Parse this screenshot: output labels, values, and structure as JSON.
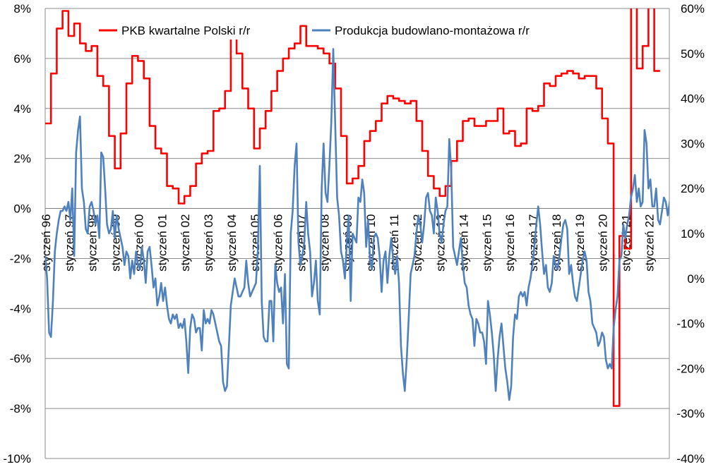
{
  "chart_data": {
    "type": "line",
    "title": "",
    "xlabel": "",
    "ylabel": "",
    "y_left": {
      "min": -10,
      "max": 8,
      "step": 2,
      "format": "percent"
    },
    "y_right": {
      "min": -40,
      "max": 60,
      "step": 10,
      "format": "percent"
    },
    "grid": "horizontal",
    "legend_position": "top-center",
    "x_ticks": [
      "styczeń 96",
      "styczeń 97",
      "styczeń 98",
      "styczeń 99",
      "styczeń 00",
      "styczeń 01",
      "styczeń 02",
      "styczeń 03",
      "styczeń 04",
      "styczeń 05",
      "styczeń 06",
      "styczeń 07",
      "styczeń 08",
      "styczeń 09",
      "styczeń 10",
      "styczeń 11",
      "styczeń 12",
      "styczeń 13",
      "styczeń 14",
      "styczeń 15",
      "styczeń 16",
      "styczeń 17",
      "styczeń 18",
      "styczeń 19",
      "styczeń 20",
      "styczeń 21",
      "styczeń 22"
    ],
    "series": [
      {
        "name": "PKB kwartalne Polski r/r",
        "axis": "left",
        "color": "#ff0000",
        "frequency": "quarterly",
        "x": [
          1996.0,
          1996.25,
          1996.5,
          1996.75,
          1997.0,
          1997.25,
          1997.5,
          1997.75,
          1998.0,
          1998.25,
          1998.5,
          1998.75,
          1999.0,
          1999.25,
          1999.5,
          1999.75,
          2000.0,
          2000.25,
          2000.5,
          2000.75,
          2001.0,
          2001.25,
          2001.5,
          2001.75,
          2002.0,
          2002.25,
          2002.5,
          2002.75,
          2003.0,
          2003.25,
          2003.5,
          2003.75,
          2004.0,
          2004.25,
          2004.5,
          2004.75,
          2005.0,
          2005.25,
          2005.5,
          2005.75,
          2006.0,
          2006.25,
          2006.5,
          2006.75,
          2007.0,
          2007.25,
          2007.5,
          2007.75,
          2008.0,
          2008.25,
          2008.5,
          2008.75,
          2009.0,
          2009.25,
          2009.5,
          2009.75,
          2010.0,
          2010.25,
          2010.5,
          2010.75,
          2011.0,
          2011.25,
          2011.5,
          2011.75,
          2012.0,
          2012.25,
          2012.5,
          2012.75,
          2013.0,
          2013.25,
          2013.5,
          2013.75,
          2014.0,
          2014.25,
          2014.5,
          2014.75,
          2015.0,
          2015.25,
          2015.5,
          2015.75,
          2016.0,
          2016.25,
          2016.5,
          2016.75,
          2017.0,
          2017.25,
          2017.5,
          2017.75,
          2018.0,
          2018.25,
          2018.5,
          2018.75,
          2019.0,
          2019.25,
          2019.5,
          2019.75,
          2020.0,
          2020.25,
          2020.5,
          2020.75,
          2021.0,
          2021.25,
          2021.5,
          2021.75,
          2022.0,
          2022.25
        ],
        "values": [
          3.4,
          5.4,
          7.2,
          7.9,
          6.9,
          7.4,
          6.6,
          6.3,
          6.5,
          5.3,
          4.9,
          2.9,
          1.6,
          3.0,
          5.0,
          6.1,
          5.9,
          5.2,
          3.3,
          2.4,
          2.2,
          0.9,
          0.8,
          0.2,
          0.5,
          0.9,
          1.8,
          2.2,
          2.3,
          3.9,
          4.0,
          4.7,
          7.0,
          6.2,
          4.8,
          4.0,
          2.4,
          3.2,
          3.9,
          4.7,
          5.5,
          6.0,
          6.4,
          6.6,
          7.3,
          6.5,
          6.5,
          6.4,
          6.2,
          5.8,
          4.8,
          2.9,
          1.0,
          1.2,
          1.7,
          2.7,
          3.1,
          3.5,
          4.2,
          4.5,
          4.4,
          4.3,
          4.2,
          4.3,
          3.5,
          2.3,
          1.3,
          0.8,
          0.5,
          0.9,
          1.9,
          2.7,
          3.5,
          3.6,
          3.3,
          3.3,
          3.5,
          3.5,
          4.0,
          3.0,
          3.1,
          2.5,
          2.6,
          4.0,
          3.9,
          4.1,
          5.0,
          4.9,
          5.3,
          5.4,
          5.5,
          5.4,
          5.2,
          5.3,
          5.3,
          4.8,
          3.6,
          2.6,
          -7.9,
          -1.1,
          -1.6,
          11.0,
          5.6,
          6.5,
          8.5,
          5.5
        ]
      },
      {
        "name": "Produkcja budowlano-montażowa r/r",
        "axis": "right",
        "color": "#4f81bd",
        "frequency": "monthly",
        "x_start": 1996.0,
        "x_step": 0.08333,
        "values": [
          5.0,
          0.0,
          -12.0,
          -13.0,
          -5.0,
          6.0,
          10.0,
          13.0,
          15.0,
          15.0,
          16.0,
          15.0,
          17.0,
          13.0,
          20.0,
          5.0,
          28.0,
          33.0,
          36.0,
          20.0,
          17.0,
          11.0,
          10.0,
          16.0,
          17.0,
          15.0,
          12.0,
          14.0,
          9.0,
          28.0,
          27.0,
          20.0,
          12.0,
          10.0,
          11.0,
          15.0,
          9.0,
          14.0,
          11.0,
          9.0,
          7.0,
          3.0,
          6.0,
          5.0,
          0.0,
          4.0,
          1.0,
          6.0,
          3.0,
          2.0,
          7.0,
          4.0,
          -1.0,
          6.0,
          7.0,
          3.0,
          -2.0,
          0.0,
          -6.0,
          -4.0,
          -1.0,
          -5.0,
          -2.0,
          -6.0,
          -9.0,
          -10.0,
          -8.0,
          -9.0,
          -8.0,
          -11.0,
          -10.0,
          -11.0,
          -9.0,
          -14.0,
          -21.0,
          -11.0,
          -8.0,
          -9.0,
          -12.0,
          -11.0,
          -11.0,
          -16.0,
          -7.0,
          -10.0,
          -9.0,
          -10.0,
          -7.0,
          -8.0,
          -10.0,
          -12.0,
          -14.0,
          -15.0,
          -23.0,
          -25.0,
          -24.0,
          -15.0,
          -6.0,
          -3.0,
          0.0,
          -2.0,
          -4.0,
          -4.0,
          -3.0,
          -2.0,
          4.0,
          -1.0,
          -4.0,
          -3.0,
          -2.0,
          -1.0,
          6.0,
          25.0,
          -5.0,
          -13.0,
          -14.0,
          -14.0,
          -5.0,
          -5.0,
          -14.0,
          3.0,
          -1.0,
          -3.0,
          -2.0,
          -10.0,
          1.0,
          -19.0,
          -20.0,
          10.0,
          15.0,
          25.0,
          30.0,
          8.0,
          3.0,
          5.0,
          8.0,
          17.0,
          10.0,
          6.0,
          -4.0,
          -1.0,
          4.0,
          -5.0,
          -8.0,
          20.0,
          30.0,
          19.0,
          17.0,
          25.0,
          35.0,
          51.0,
          34.0,
          18.0,
          14.0,
          6.0,
          4.0,
          0.0,
          8.0,
          14.0,
          -5.0,
          10.0,
          9.0,
          8.0,
          18.0,
          17.0,
          22.0,
          19.0,
          7.0,
          13.0,
          4.0,
          2.0,
          9.0,
          10.0,
          9.0,
          5.0,
          -3.0,
          4.0,
          6.0,
          -1.0,
          5.0,
          9.0,
          4.0,
          1.0,
          5.0,
          -1.0,
          -15.0,
          -21.0,
          -25.0,
          -18.0,
          -9.0,
          1.0,
          3.0,
          5.0,
          10.0,
          14.0,
          12.0,
          8.0,
          12.0,
          18.0,
          19.0,
          15.0,
          14.0,
          10.0,
          18.0,
          15.0,
          10.0,
          8.0,
          12.0,
          15.0,
          16.0,
          31.0,
          24.0,
          7.0,
          5.0,
          3.0,
          6.0,
          9.0,
          3.0,
          -1.0,
          -2.0,
          -6.0,
          -8.0,
          -9.0,
          -15.0,
          -9.0,
          -10.0,
          -12.0,
          -12.0,
          -14.0,
          -19.0,
          -5.0,
          -8.0,
          -12.0,
          -17.0,
          -25.0,
          -18.0,
          -13.0,
          -10.0,
          -15.0,
          -20.0,
          -23.0,
          -27.0,
          -24.0,
          -13.0,
          -8.0,
          -9.0,
          -4.0,
          -3.0,
          -4.0,
          -3.0,
          -6.0,
          -2.0,
          0.0,
          3.0,
          7.0,
          12.0,
          16.0,
          12.0,
          6.0,
          1.0,
          3.0,
          -2.0,
          -3.0,
          -1.0,
          5.0,
          3.0,
          2.0,
          5.0,
          9.0,
          12.0,
          13.0,
          11.0,
          1.0,
          3.0,
          -1.0,
          -4.0,
          -5.0,
          -2.0,
          1.0,
          4.0,
          6.0,
          4.0,
          -3.0,
          -5.0,
          -10.0,
          -11.0,
          -12.0,
          -15.0,
          -14.0,
          -12.0,
          -13.0,
          -18.0,
          -20.0,
          -19.0,
          -20.0,
          -11.0,
          -7.0,
          -4.0,
          4.0,
          5.0,
          12.0,
          9.0,
          12.0,
          14.0,
          18.0,
          20.0,
          23.0,
          17.0,
          20.0,
          16.0,
          17.0,
          33.0,
          30.0,
          20.0,
          22.0,
          16.0,
          16.0,
          20.0,
          13.0,
          12.0,
          15.0,
          18.0,
          17.0,
          14.0,
          17.0,
          20.0,
          16.0,
          9.0,
          11.0,
          12.0,
          8.0,
          -4.0,
          3.0,
          4.0,
          -3.0,
          0.0,
          -2.0,
          2.0,
          -6.0,
          -4.0,
          -3.0,
          -8.0,
          -10.0,
          -9.0,
          -8.0,
          -5.0,
          -2.0,
          -5.0,
          -2.0,
          -12.0,
          -17.0,
          -13.0,
          -11.0,
          -9.0,
          -6.0,
          4.0,
          1.0,
          5.0,
          3.0,
          4.0,
          9.0,
          8.0,
          15.0,
          19.0,
          26.0,
          32.0,
          12.0,
          4.0,
          4.0,
          6.0
        ]
      }
    ]
  }
}
